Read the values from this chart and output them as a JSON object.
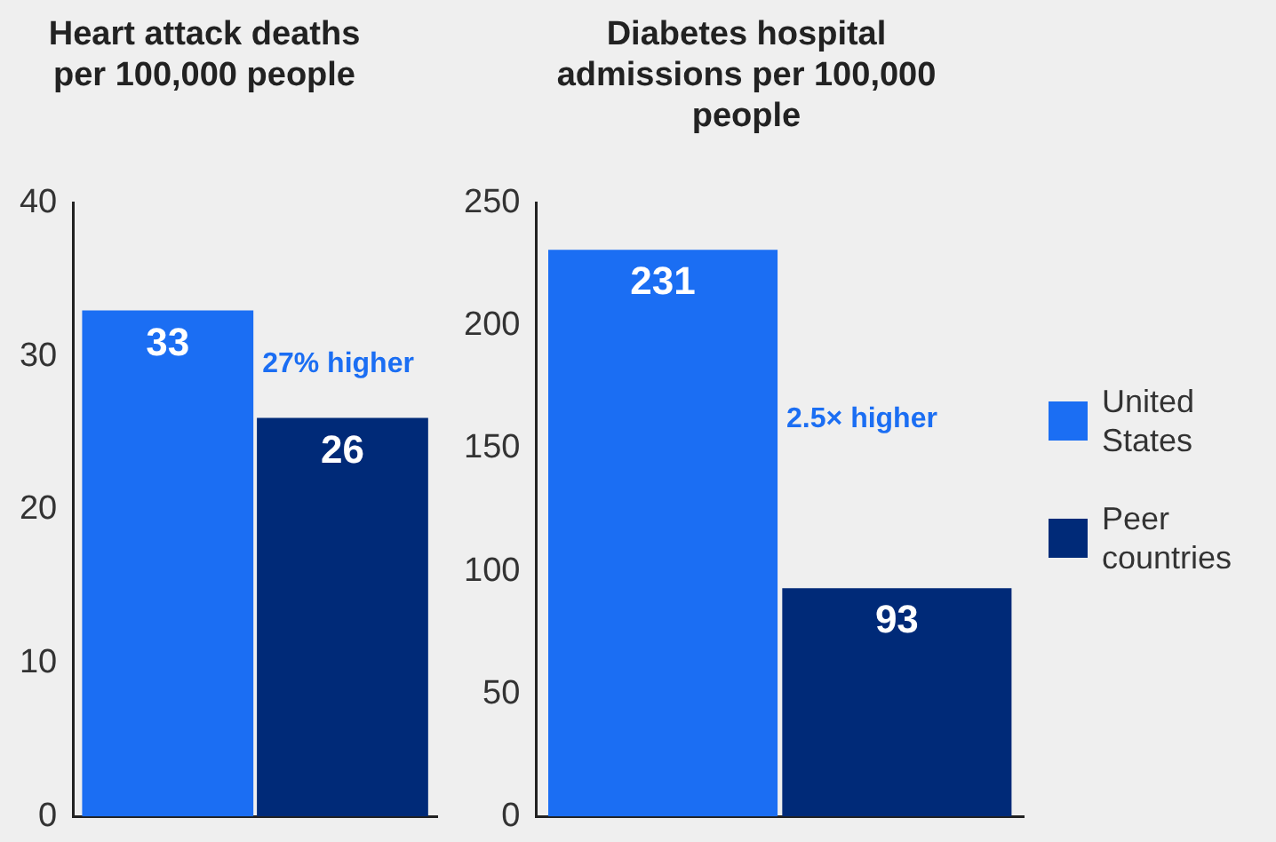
{
  "chart_data": [
    {
      "type": "bar",
      "title": "Heart attack deaths per 100,000 people",
      "categories": [
        null
      ],
      "series": [
        {
          "color": "#1b6ef3",
          "values": [
            33
          ]
        },
        {
          "color": "#002a78",
          "values": [
            26
          ]
        }
      ],
      "ylim": [
        0,
        40
      ],
      "yticks": [
        0,
        10,
        20,
        30,
        40
      ],
      "grid": false,
      "legend": false,
      "data_labels": true,
      "annotations": [
        "27% higher"
      ]
    },
    {
      "type": "bar",
      "title": "Diabetes hospital admissions per 100,000 people",
      "categories": [
        null
      ],
      "series": [
        {
          "name": "United States",
          "color": "#1b6ef3",
          "values": [
            231
          ]
        },
        {
          "name": "Peer countries",
          "color": "#002a78",
          "values": [
            93
          ]
        }
      ],
      "ylim": [
        0,
        250
      ],
      "yticks": [
        0,
        50,
        100,
        150,
        200,
        250
      ],
      "grid": false,
      "legend": "right",
      "data_labels": true,
      "annotations": [
        "2.5× higher"
      ]
    }
  ]
}
